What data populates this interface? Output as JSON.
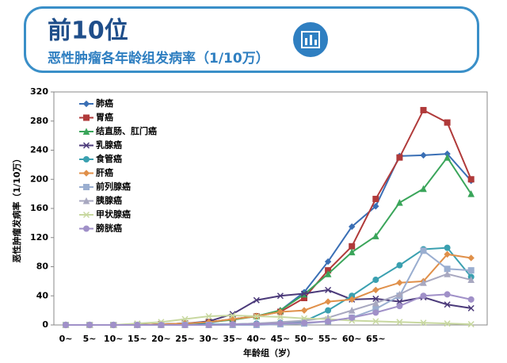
{
  "header": {
    "title": "前10位"
  },
  "chart_data": {
    "type": "line",
    "title": "恶性肿瘤各年龄组发病率（1/10万）",
    "y_label": "恶性肿瘤发病率（1/10万）",
    "x_label": "年龄组（岁）",
    "categories": [
      "0~",
      "5~",
      "10~",
      "15~",
      "20~",
      "25~",
      "30~",
      "35~",
      "40~",
      "45~",
      "50~",
      "55~",
      "60~",
      "65~",
      null,
      null,
      null,
      null
    ],
    "ylim": [
      0,
      320
    ],
    "yticks": [
      0,
      40,
      80,
      120,
      160,
      200,
      240,
      280,
      320
    ],
    "series": [
      {
        "name": "肺癌",
        "color": "#3a6fb5",
        "values": [
          0,
          0,
          0,
          0,
          1,
          2,
          3,
          8,
          12,
          20,
          45,
          87,
          135,
          163,
          232,
          233,
          235,
          198
        ]
      },
      {
        "name": "胃癌",
        "color": "#b03a3a",
        "values": [
          0,
          0,
          0,
          0,
          1,
          2,
          4,
          8,
          12,
          18,
          37,
          75,
          108,
          173,
          230,
          295,
          278,
          200
        ]
      },
      {
        "name": "结直肠、肛门癌",
        "color": "#3aa55a",
        "values": [
          0,
          0,
          0,
          0,
          1,
          2,
          4,
          7,
          12,
          20,
          42,
          70,
          100,
          122,
          168,
          187,
          230,
          180
        ]
      },
      {
        "name": "乳腺癌",
        "color": "#4b3a7a",
        "values": [
          0,
          0,
          0,
          0,
          1,
          2,
          5,
          15,
          34,
          40,
          43,
          48,
          35,
          36,
          32,
          38,
          28,
          23
        ]
      },
      {
        "name": "食管癌",
        "color": "#3aa0b0",
        "values": [
          0,
          0,
          0,
          0,
          0,
          0,
          1,
          1,
          2,
          3,
          5,
          20,
          40,
          62,
          82,
          104,
          106,
          66
        ]
      },
      {
        "name": "肝癌",
        "color": "#e0904a",
        "values": [
          0,
          0,
          0,
          0,
          1,
          2,
          4,
          8,
          12,
          18,
          20,
          32,
          35,
          48,
          58,
          60,
          97,
          92
        ]
      },
      {
        "name": "前列腺癌",
        "color": "#9aaed0",
        "values": [
          0,
          0,
          0,
          0,
          0,
          0,
          0,
          0,
          0,
          1,
          2,
          5,
          10,
          22,
          40,
          102,
          77,
          75
        ]
      },
      {
        "name": "胰腺癌",
        "color": "#a8a8c0",
        "values": [
          0,
          0,
          0,
          0,
          0,
          0,
          0,
          1,
          2,
          4,
          6,
          10,
          20,
          30,
          42,
          58,
          70,
          62
        ]
      },
      {
        "name": "甲状腺癌",
        "color": "#c8d8a0",
        "values": [
          0,
          0,
          0,
          2,
          4,
          8,
          12,
          13,
          12,
          11,
          9,
          8,
          6,
          5,
          4,
          3,
          2,
          1
        ]
      },
      {
        "name": "膀胱癌",
        "color": "#a090c8",
        "values": [
          0,
          0,
          0,
          0,
          0,
          0,
          0,
          1,
          1,
          2,
          3,
          5,
          10,
          17,
          26,
          40,
          42,
          35
        ]
      }
    ]
  }
}
